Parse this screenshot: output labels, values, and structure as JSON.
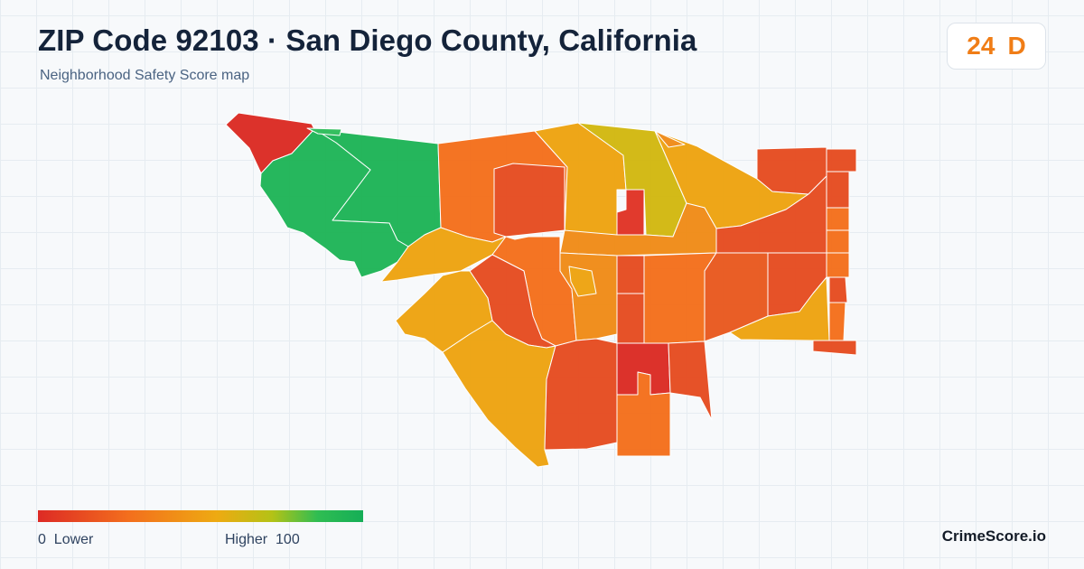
{
  "header": {
    "title": "ZIP Code 92103 · San Diego County, California",
    "subtitle": "Neighborhood Safety Score map"
  },
  "score_badge": {
    "score": "24",
    "grade": "D",
    "color": "#f07d16"
  },
  "legend": {
    "left_label": "0  Lower",
    "right_label": "Higher  100",
    "scale_min": 0,
    "scale_max": 100,
    "colors": [
      "#dd2a25",
      "#f36f1d",
      "#eeaa12",
      "#b4c216",
      "#2fbd52",
      "#15ae57"
    ]
  },
  "brand": {
    "name": "CrimeScore.io"
  },
  "map": {
    "score_colors": {
      "red": "#dc2c25",
      "red_orange": "#e64d22",
      "orange": "#f4701d",
      "amber": "#eea411",
      "yellow_green": "#d2b811",
      "green": "#1fb457",
      "green_light": "#2fbe5c"
    }
  }
}
